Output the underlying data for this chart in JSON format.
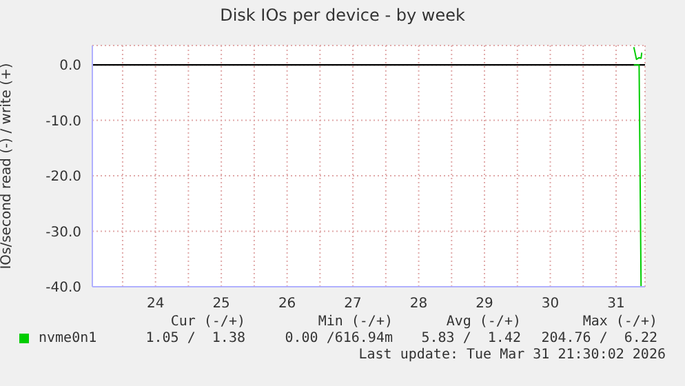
{
  "chart_data": {
    "type": "line",
    "title": "Disk IOs per device - by week",
    "ylabel": "IOs/second read (-) / write (+)",
    "x": [
      31.77,
      31.81,
      31.85,
      31.88,
      31.89
    ],
    "series": [
      {
        "name": "nvme0n1",
        "color": "#00cc00",
        "values": [
          3.2,
          1.0,
          1.3,
          1.2,
          2.2
        ]
      },
      {
        "color": "#00cc00",
        "values": [
          0,
          0,
          0,
          -40,
          -40
        ]
      }
    ],
    "xlim": [
      23.54,
      31.94
    ],
    "xticks": [
      {
        "value": 24,
        "label": null
      },
      {
        "value": 24.5,
        "label": "24"
      },
      {
        "value": 25,
        "label": null
      },
      {
        "value": 25.5,
        "label": "25"
      },
      {
        "value": 26,
        "label": null
      },
      {
        "value": 26.5,
        "label": "26"
      },
      {
        "value": 27,
        "label": null
      },
      {
        "value": 27.5,
        "label": "27"
      },
      {
        "value": 28,
        "label": null
      },
      {
        "value": 28.5,
        "label": "28"
      },
      {
        "value": 29,
        "label": null
      },
      {
        "value": 29.5,
        "label": "29"
      },
      {
        "value": 30,
        "label": null
      },
      {
        "value": 30.5,
        "label": "30"
      },
      {
        "value": 31,
        "label": null
      },
      {
        "value": 31.5,
        "label": "31"
      }
    ],
    "ylim": [
      -40,
      3.5
    ],
    "yticks": [
      {
        "value": -40,
        "label": "-40.0"
      },
      {
        "value": -30,
        "label": "-30.0"
      },
      {
        "value": -20,
        "label": "-20.0"
      },
      {
        "value": -10,
        "label": "-10.0"
      },
      {
        "value": 0,
        "label": "0.0"
      }
    ],
    "ref_lines": [
      {
        "axis": "y",
        "value": 0,
        "color": "#000000"
      }
    ],
    "grid": true,
    "legend": "bottom",
    "marker": "none",
    "line_style": "solid",
    "annotations": [
      "Cur (-/+)",
      "Min (-/+)",
      "Avg (-/+)",
      "Max (-/+)",
      "1.05 /  1.38",
      "0.00 /616.94m",
      "5.83 /  1.42",
      "204.76 /  6.22",
      "Last update: Tue Mar 31 21:30:02 2026"
    ]
  }
}
